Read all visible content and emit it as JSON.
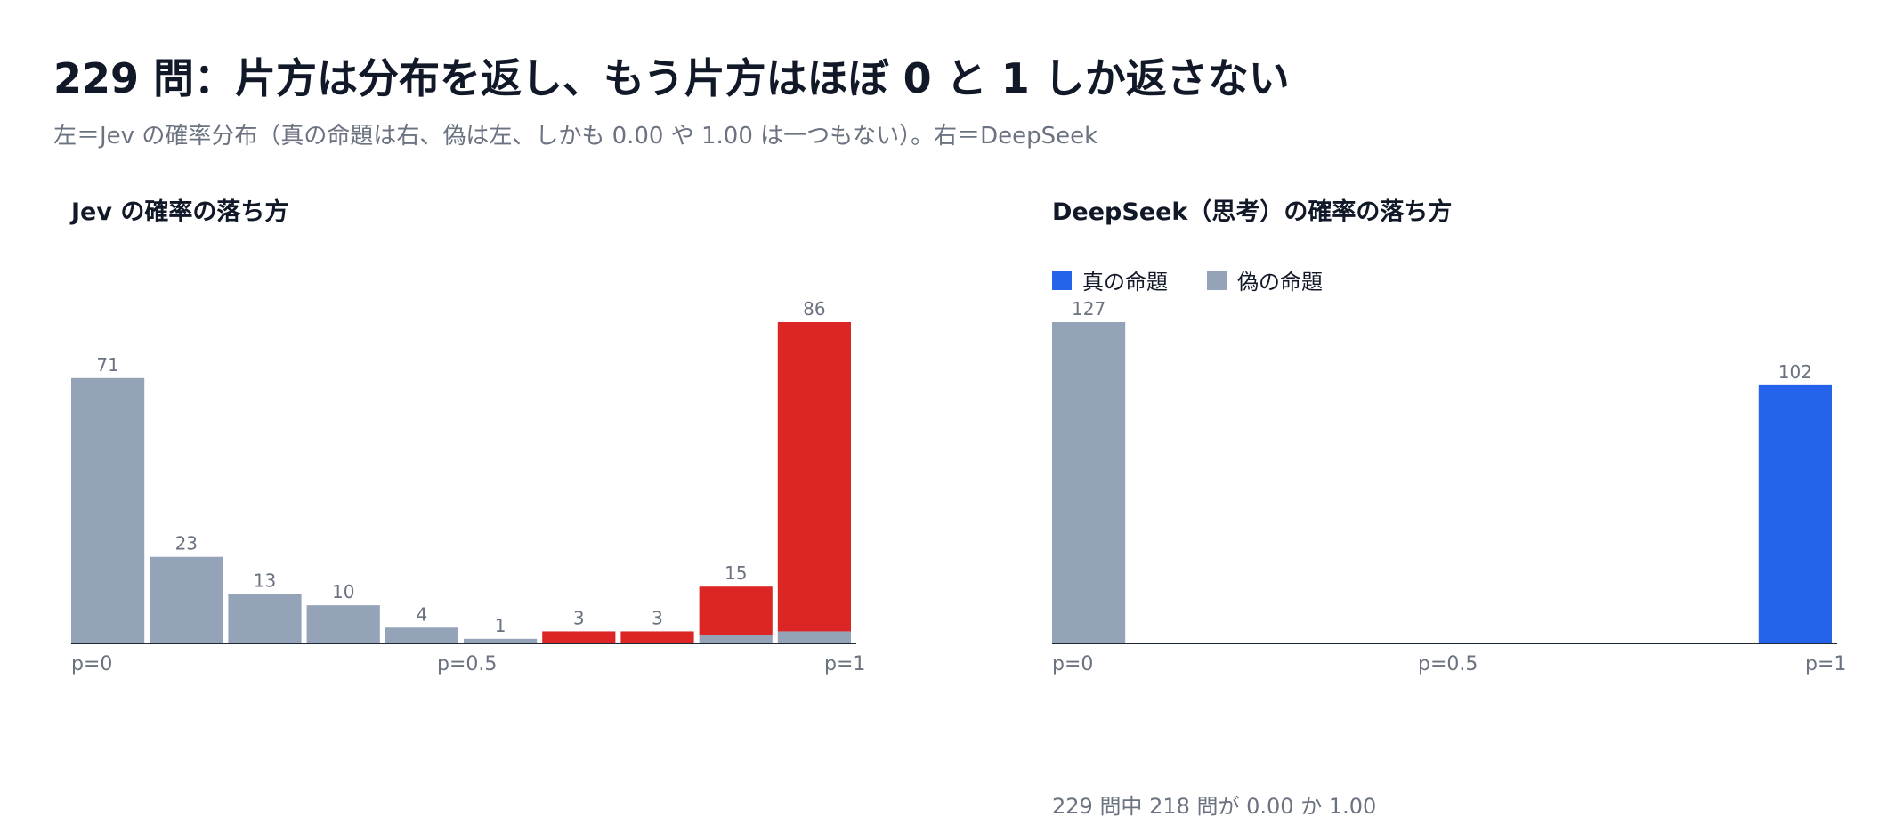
{
  "title": "229 問：片方は分布を返し、もう片方はほぼ 0 と 1 しか返さない",
  "subtitle": "左＝Jev の確率分布（真の命題は右、偽は左、しかも 0.00 や 1.00 は一つもない）。右＝DeepSeek",
  "footnote": "229 問中 218 問が 0.00 か 1.00",
  "colors": {
    "true": "#dc2626",
    "false": "#94a3b8",
    "true_right": "#2563eb",
    "axis": "#1f2937",
    "label": "#6b7280"
  },
  "chart_data": [
    {
      "type": "bar",
      "stacked": true,
      "title": "Jev の確率の落ち方",
      "tick_labels": [
        "p=0",
        "p=0.5",
        "p=1"
      ],
      "bins": 10,
      "totals": [
        71,
        23,
        13,
        10,
        4,
        1,
        3,
        3,
        15,
        86
      ],
      "series": [
        {
          "key": "false",
          "values": [
            71,
            23,
            13,
            10,
            4,
            1,
            0,
            0,
            2,
            3
          ]
        },
        {
          "key": "true",
          "values": [
            0,
            0,
            0,
            0,
            0,
            0,
            3,
            3,
            13,
            83
          ]
        }
      ],
      "ylim": [
        0,
        86
      ]
    },
    {
      "type": "bar",
      "stacked": true,
      "title": "DeepSeek（思考）の確率の落ち方",
      "tick_labels": [
        "p=0",
        "p=0.5",
        "p=1"
      ],
      "bins": 10,
      "legend": [
        {
          "key": "true",
          "label": "真の命題"
        },
        {
          "key": "false",
          "label": "偽の命題"
        }
      ],
      "legend_position": "top-left",
      "totals": [
        127,
        0,
        0,
        0,
        0,
        0,
        0,
        0,
        0,
        102
      ],
      "series": [
        {
          "key": "false",
          "values": [
            127,
            0,
            0,
            0,
            0,
            0,
            0,
            0,
            0,
            0
          ]
        },
        {
          "key": "true",
          "values": [
            0,
            0,
            0,
            0,
            0,
            0,
            0,
            0,
            0,
            102
          ]
        }
      ],
      "ylim": [
        0,
        127
      ]
    }
  ]
}
